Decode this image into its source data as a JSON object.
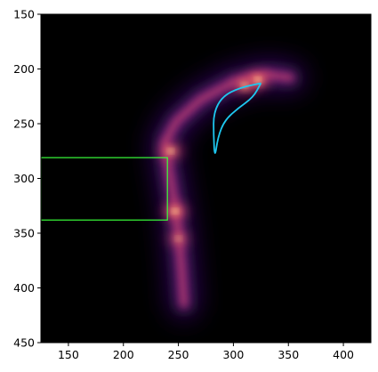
{
  "chart_data": {
    "type": "heatmap",
    "title": "",
    "xlabel": "",
    "ylabel": "",
    "xlim": [
      125,
      425
    ],
    "ylim": [
      450,
      150
    ],
    "y_inverted": true,
    "x_ticks": [
      150,
      200,
      250,
      300,
      350,
      400
    ],
    "y_ticks": [
      150,
      200,
      250,
      300,
      350,
      400,
      450
    ],
    "background_color": "#000000",
    "colormap": "magma",
    "grid": false,
    "legend": "none",
    "density_hotspots": [
      {
        "x": 322,
        "y": 210,
        "intensity": 1.0
      },
      {
        "x": 310,
        "y": 215,
        "intensity": 0.75
      },
      {
        "x": 243,
        "y": 275,
        "intensity": 0.8
      },
      {
        "x": 247,
        "y": 330,
        "intensity": 0.9
      },
      {
        "x": 250,
        "y": 355,
        "intensity": 0.5
      }
    ],
    "spine_path": [
      [
        352,
        208
      ],
      [
        330,
        205
      ],
      [
        300,
        212
      ],
      [
        270,
        228
      ],
      [
        248,
        248
      ],
      [
        238,
        266
      ],
      [
        241,
        290
      ],
      [
        246,
        320
      ],
      [
        250,
        350
      ],
      [
        253,
        385
      ],
      [
        255,
        415
      ]
    ],
    "rectangle": {
      "x0": 125,
      "x1": 240,
      "y0": 281,
      "y1": 338,
      "color": "#39ff3a"
    },
    "shape_outline": {
      "color": "#1ec8f0",
      "points": [
        [
          325,
          213
        ],
        [
          306,
          217
        ],
        [
          290,
          225
        ],
        [
          282,
          240
        ],
        [
          282,
          260
        ],
        [
          283,
          282
        ],
        [
          286,
          262
        ],
        [
          292,
          247
        ],
        [
          304,
          236
        ],
        [
          318,
          226
        ],
        [
          325,
          213
        ]
      ]
    }
  }
}
